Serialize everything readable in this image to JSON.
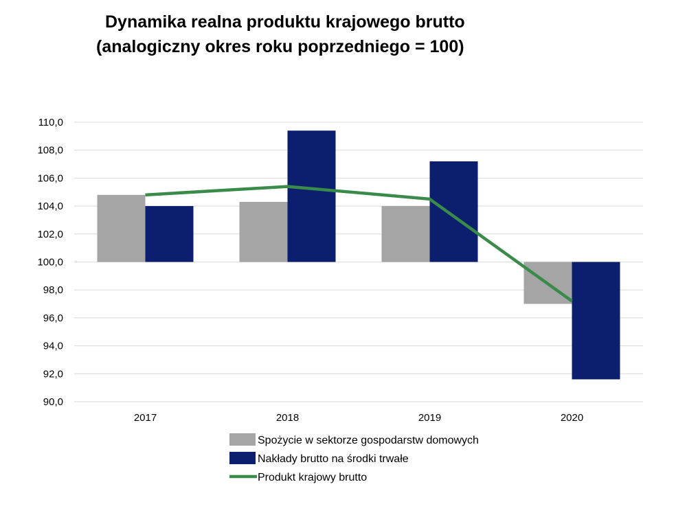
{
  "chart_data": {
    "type": "bar",
    "title_line1": "Dynamika realna produktu krajowego brutto",
    "title_line2": "(analogiczny okres roku poprzedniego = 100)",
    "categories": [
      "2017",
      "2018",
      "2019",
      "2020"
    ],
    "baseline": 100,
    "ylim": [
      90,
      110
    ],
    "yticks": [
      "90,0",
      "92,0",
      "94,0",
      "96,0",
      "98,0",
      "100,0",
      "102,0",
      "104,0",
      "106,0",
      "108,0",
      "110,0"
    ],
    "grid": true,
    "legend_position": "bottom",
    "series": [
      {
        "name": "Spożycie w sektorze gospodarstw domowych",
        "kind": "bar",
        "color": "#a5a5a5",
        "values": [
          104.8,
          104.3,
          104.0,
          97.0
        ]
      },
      {
        "name": "Nakłady brutto na środki trwałe",
        "kind": "bar",
        "color": "#0b1f6e",
        "values": [
          104.0,
          109.4,
          107.2,
          91.6
        ]
      },
      {
        "name": "Produkt krajowy brutto",
        "kind": "line",
        "color": "#3a8a4a",
        "values": [
          104.8,
          105.4,
          104.5,
          97.2
        ]
      }
    ]
  }
}
